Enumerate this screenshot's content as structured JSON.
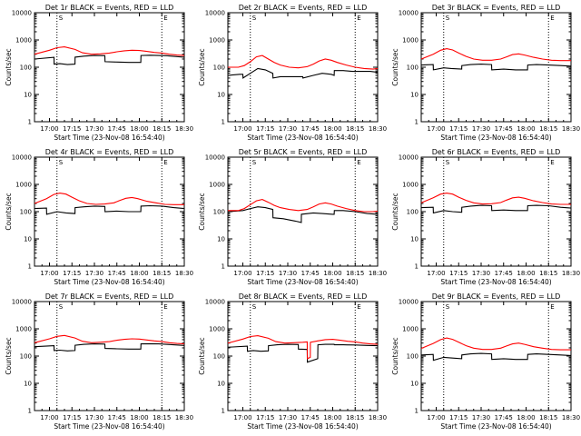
{
  "layout": {
    "rows": 3,
    "cols": 3
  },
  "x_ticks": [
    "17:00",
    "17:15",
    "17:30",
    "17:45",
    "18:00",
    "18:15",
    "18:30"
  ],
  "y_ticks": [
    "1",
    "10",
    "100",
    "1000",
    "10000"
  ],
  "vlines_labels": [
    "S",
    "E"
  ],
  "colors": {
    "events": "#000000",
    "lld": "#ff0000",
    "axis": "#000000",
    "background": "#ffffff"
  },
  "chart_data": [
    {
      "type": "line",
      "title": "Det 1r BLACK = Events, RED = LLD",
      "xlabel": "Start Time (23-Nov-08 16:54:40)",
      "ylabel": "Counts/sec",
      "x_range_min": [
        -5,
        95
      ],
      "y_scale": "log",
      "ylim": [
        1,
        10000
      ],
      "markers_min": [
        10,
        80
      ],
      "series": [
        {
          "color": "black",
          "x": [
            -5,
            8,
            8.1,
            12,
            17,
            22,
            22.1,
            28,
            35,
            42,
            42.1,
            50,
            58,
            66,
            66.1,
            72,
            78,
            83,
            90,
            95
          ],
          "values": [
            200,
            230,
            130,
            135,
            125,
            130,
            235,
            255,
            270,
            265,
            160,
            155,
            150,
            150,
            270,
            275,
            270,
            265,
            245,
            235
          ]
        },
        {
          "color": "red",
          "x": [
            -5,
            5,
            10,
            15,
            22,
            27,
            33,
            39,
            45,
            50,
            55,
            60,
            65,
            70,
            75,
            80,
            85,
            90,
            95
          ],
          "values": [
            300,
            420,
            520,
            560,
            450,
            340,
            300,
            310,
            330,
            370,
            400,
            420,
            410,
            380,
            350,
            330,
            300,
            280,
            270
          ]
        }
      ]
    },
    {
      "type": "line",
      "title": "Det 2r BLACK = Events, RED = LLD",
      "xlabel": "Start Time (23-Nov-08 16:54:40)",
      "ylabel": "Counts/sec",
      "x_range_min": [
        -5,
        95
      ],
      "y_scale": "log",
      "ylim": [
        1,
        10000
      ],
      "markers_min": [
        10,
        80
      ],
      "series": [
        {
          "color": "black",
          "x": [
            -5,
            3,
            5,
            5.1,
            10,
            15,
            20,
            25,
            25.1,
            30,
            37,
            42,
            45,
            45.1,
            52,
            58,
            64,
            66,
            66.1,
            72,
            78,
            85,
            90,
            95
          ],
          "values": [
            50,
            55,
            55,
            40,
            60,
            90,
            80,
            60,
            40,
            45,
            45,
            45,
            45,
            40,
            50,
            60,
            55,
            50,
            75,
            75,
            70,
            70,
            70,
            65
          ]
        },
        {
          "color": "red",
          "x": [
            -5,
            2,
            6,
            10,
            14,
            18,
            22,
            26,
            30,
            36,
            42,
            48,
            52,
            56,
            60,
            64,
            68,
            74,
            80,
            86,
            92,
            95
          ],
          "values": [
            100,
            100,
            115,
            160,
            240,
            270,
            200,
            150,
            120,
            100,
            95,
            105,
            130,
            170,
            200,
            180,
            150,
            120,
            100,
            90,
            85,
            90
          ]
        }
      ]
    },
    {
      "type": "line",
      "title": "Det 3r BLACK = Events, RED = LLD",
      "xlabel": "Start Time (23-Nov-08 16:54:40)",
      "ylabel": "Counts/sec",
      "x_range_min": [
        -5,
        95
      ],
      "y_scale": "log",
      "ylim": [
        1,
        10000
      ],
      "markers_min": [
        10,
        80
      ],
      "series": [
        {
          "color": "black",
          "x": [
            -5,
            3,
            3.1,
            10,
            15,
            22,
            22.1,
            28,
            35,
            42,
            42.1,
            50,
            58,
            66,
            66.1,
            72,
            80,
            88,
            95
          ],
          "values": [
            120,
            125,
            80,
            95,
            90,
            85,
            115,
            125,
            130,
            125,
            80,
            85,
            80,
            80,
            120,
            125,
            120,
            115,
            110
          ]
        },
        {
          "color": "red",
          "x": [
            -5,
            3,
            8,
            12,
            16,
            20,
            25,
            30,
            36,
            42,
            48,
            52,
            56,
            60,
            64,
            70,
            76,
            82,
            88,
            95
          ],
          "values": [
            200,
            300,
            420,
            480,
            430,
            330,
            250,
            200,
            180,
            180,
            200,
            240,
            290,
            310,
            280,
            230,
            200,
            180,
            175,
            175
          ]
        }
      ]
    },
    {
      "type": "line",
      "title": "Det 4r BLACK = Events, RED = LLD",
      "xlabel": "Start Time (23-Nov-08 16:54:40)",
      "ylabel": "Counts/sec",
      "x_range_min": [
        -5,
        95
      ],
      "y_scale": "log",
      "ylim": [
        1,
        10000
      ],
      "markers_min": [
        10,
        80
      ],
      "series": [
        {
          "color": "black",
          "x": [
            -5,
            3,
            3.1,
            10,
            16,
            22,
            22.1,
            28,
            35,
            42,
            42.1,
            50,
            58,
            66,
            66.1,
            72,
            80,
            88,
            95
          ],
          "values": [
            130,
            135,
            80,
            100,
            90,
            85,
            140,
            150,
            160,
            155,
            100,
            105,
            100,
            100,
            160,
            165,
            160,
            140,
            130
          ]
        },
        {
          "color": "red",
          "x": [
            -5,
            3,
            8,
            12,
            16,
            20,
            25,
            30,
            36,
            42,
            48,
            52,
            56,
            60,
            64,
            70,
            76,
            82,
            88,
            95
          ],
          "values": [
            200,
            300,
            430,
            480,
            440,
            340,
            250,
            200,
            185,
            190,
            210,
            260,
            310,
            330,
            300,
            240,
            210,
            185,
            180,
            180
          ]
        }
      ]
    },
    {
      "type": "line",
      "title": "Det 5r BLACK = Events, RED = LLD",
      "xlabel": "Start Time (23-Nov-08 16:54:40)",
      "ylabel": "Counts/sec",
      "x_range_min": [
        -5,
        95
      ],
      "y_scale": "log",
      "ylim": [
        1,
        10000
      ],
      "markers_min": [
        10,
        80
      ],
      "series": [
        {
          "color": "black",
          "x": [
            -5,
            5,
            10,
            15,
            20,
            25,
            25.1,
            32,
            40,
            44,
            44.1,
            52,
            58,
            65,
            66,
            66.1,
            72,
            80,
            88,
            95
          ],
          "values": [
            100,
            110,
            130,
            150,
            140,
            120,
            60,
            55,
            45,
            40,
            80,
            90,
            85,
            80,
            80,
            110,
            110,
            100,
            85,
            80
          ]
        },
        {
          "color": "red",
          "x": [
            -5,
            2,
            6,
            10,
            14,
            18,
            22,
            26,
            30,
            36,
            42,
            48,
            52,
            56,
            60,
            64,
            68,
            74,
            80,
            86,
            92,
            95
          ],
          "values": [
            110,
            110,
            130,
            180,
            250,
            280,
            220,
            170,
            140,
            120,
            110,
            120,
            150,
            190,
            210,
            190,
            160,
            130,
            110,
            100,
            100,
            105
          ]
        }
      ]
    },
    {
      "type": "line",
      "title": "Det 6r BLACK = Events, RED = LLD",
      "xlabel": "Start Time (23-Nov-08 16:54:40)",
      "ylabel": "Counts/sec",
      "x_range_min": [
        -5,
        95
      ],
      "y_scale": "log",
      "ylim": [
        1,
        10000
      ],
      "markers_min": [
        10,
        80
      ],
      "series": [
        {
          "color": "black",
          "x": [
            -5,
            3,
            3.1,
            10,
            16,
            22,
            22.1,
            28,
            35,
            42,
            42.1,
            50,
            58,
            66,
            66.1,
            72,
            80,
            88,
            95
          ],
          "values": [
            140,
            145,
            90,
            110,
            100,
            95,
            145,
            160,
            170,
            165,
            110,
            115,
            110,
            110,
            165,
            170,
            165,
            145,
            135
          ]
        },
        {
          "color": "red",
          "x": [
            -5,
            3,
            8,
            12,
            16,
            20,
            25,
            30,
            36,
            42,
            48,
            52,
            56,
            60,
            64,
            70,
            76,
            82,
            88,
            95
          ],
          "values": [
            210,
            320,
            440,
            480,
            440,
            340,
            260,
            210,
            190,
            195,
            215,
            265,
            320,
            340,
            310,
            250,
            215,
            190,
            185,
            185
          ]
        }
      ]
    },
    {
      "type": "line",
      "title": "Det 7r BLACK = Events, RED = LLD",
      "xlabel": "Start Time (23-Nov-08 16:54:40)",
      "ylabel": "Counts/sec",
      "x_range_min": [
        -5,
        95
      ],
      "y_scale": "log",
      "ylim": [
        1,
        10000
      ],
      "markers_min": [
        10,
        80
      ],
      "series": [
        {
          "color": "black",
          "x": [
            -5,
            8,
            8.1,
            12,
            17,
            22,
            22.1,
            28,
            35,
            42,
            42.1,
            50,
            58,
            66,
            66.1,
            72,
            78,
            83,
            90,
            95
          ],
          "values": [
            220,
            240,
            160,
            165,
            155,
            160,
            250,
            270,
            280,
            275,
            190,
            185,
            180,
            180,
            280,
            285,
            280,
            270,
            255,
            245
          ]
        },
        {
          "color": "red",
          "x": [
            -5,
            5,
            10,
            15,
            22,
            27,
            33,
            39,
            45,
            50,
            55,
            60,
            65,
            70,
            75,
            80,
            85,
            90,
            95
          ],
          "values": [
            310,
            430,
            530,
            570,
            460,
            350,
            310,
            320,
            340,
            380,
            410,
            430,
            420,
            390,
            360,
            340,
            310,
            290,
            280
          ]
        }
      ]
    },
    {
      "type": "line",
      "title": "Det 8r BLACK = Events, RED = LLD",
      "xlabel": "Start Time (23-Nov-08 16:54:40)",
      "ylabel": "Counts/sec",
      "x_range_min": [
        -5,
        95
      ],
      "y_scale": "log",
      "ylim": [
        1,
        10000
      ],
      "markers_min": [
        10,
        80
      ],
      "series": [
        {
          "color": "black",
          "x": [
            -5,
            8,
            8.1,
            12,
            17,
            22,
            22.1,
            28,
            35,
            42,
            42.1,
            48,
            48.1,
            55,
            55.1,
            60,
            66,
            66.1,
            72,
            80,
            88,
            95
          ],
          "values": [
            210,
            230,
            150,
            160,
            150,
            155,
            240,
            260,
            270,
            265,
            180,
            175,
            60,
            80,
            260,
            270,
            270,
            260,
            260,
            255,
            245,
            240
          ]
        },
        {
          "color": "red",
          "x": [
            -5,
            5,
            10,
            15,
            22,
            27,
            33,
            39,
            45,
            48,
            48.1,
            50,
            50.1,
            55,
            60,
            65,
            70,
            75,
            80,
            85,
            90,
            95
          ],
          "values": [
            300,
            420,
            520,
            560,
            450,
            340,
            300,
            310,
            320,
            330,
            80,
            90,
            320,
            360,
            400,
            410,
            380,
            350,
            330,
            300,
            280,
            270
          ]
        }
      ]
    },
    {
      "type": "line",
      "title": "Det 9r BLACK = Events, RED = LLD",
      "xlabel": "Start Time (23-Nov-08 16:54:40)",
      "ylabel": "Counts/sec",
      "x_range_min": [
        -5,
        95
      ],
      "y_scale": "log",
      "ylim": [
        1,
        10000
      ],
      "markers_min": [
        10,
        80
      ],
      "series": [
        {
          "color": "black",
          "x": [
            -5,
            3,
            3.1,
            10,
            15,
            22,
            22.1,
            28,
            35,
            42,
            42.1,
            50,
            58,
            66,
            66.1,
            72,
            80,
            88,
            95
          ],
          "values": [
            110,
            115,
            70,
            90,
            85,
            80,
            110,
            120,
            125,
            120,
            75,
            80,
            75,
            75,
            115,
            120,
            115,
            110,
            105
          ]
        },
        {
          "color": "red",
          "x": [
            -5,
            3,
            8,
            12,
            16,
            20,
            25,
            30,
            36,
            42,
            48,
            52,
            56,
            60,
            64,
            70,
            76,
            82,
            88,
            95
          ],
          "values": [
            190,
            290,
            400,
            460,
            410,
            320,
            240,
            195,
            175,
            175,
            195,
            235,
            280,
            300,
            270,
            220,
            195,
            175,
            170,
            170
          ]
        }
      ]
    }
  ]
}
